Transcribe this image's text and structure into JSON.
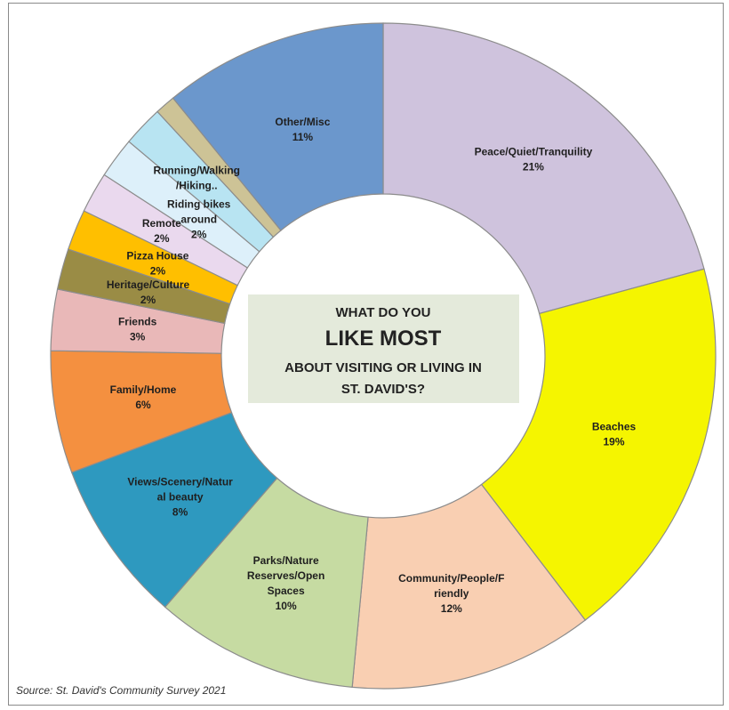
{
  "chart_data": {
    "type": "pie",
    "donut": true,
    "title_lines": [
      "WHAT DO YOU",
      "LIKE MOST",
      "ABOUT VISITING OR LIVING IN",
      "ST. DAVID'S?"
    ],
    "source": "Source:  St. David's Community Survey 2021",
    "slices": [
      {
        "label_lines": [
          "Peace/Quiet/Tranquility"
        ],
        "pct_text": "21%",
        "value": 21,
        "color": "#cfc3dd"
      },
      {
        "label_lines": [
          "Beaches"
        ],
        "pct_text": "19%",
        "value": 19,
        "color": "#f5f500"
      },
      {
        "label_lines": [
          "Community/People/F",
          "riendly"
        ],
        "pct_text": "12%",
        "value": 12,
        "color": "#f9cfb2"
      },
      {
        "label_lines": [
          "Parks/Nature",
          "Reserves/Open",
          "Spaces"
        ],
        "pct_text": "10%",
        "value": 10,
        "color": "#c6dba2"
      },
      {
        "label_lines": [
          "Views/Scenery/Natur",
          "al beauty"
        ],
        "pct_text": "8%",
        "value": 8,
        "color": "#2e99bf"
      },
      {
        "label_lines": [
          "Family/Home"
        ],
        "pct_text": "6%",
        "value": 6,
        "color": "#f49040"
      },
      {
        "label_lines": [
          "Friends"
        ],
        "pct_text": "3%",
        "value": 3,
        "color": "#e9b8b8"
      },
      {
        "label_lines": [
          "Heritage/Culture"
        ],
        "pct_text": "2%",
        "value": 2,
        "color": "#9a8c45"
      },
      {
        "label_lines": [
          "Pizza House"
        ],
        "pct_text": "2%",
        "value": 2,
        "color": "#ffbf00"
      },
      {
        "label_lines": [
          "Remote"
        ],
        "pct_text": "2%",
        "value": 2,
        "color": "#ead9ee"
      },
      {
        "label_lines": [
          "Riding bikes",
          "around"
        ],
        "pct_text": "2%",
        "value": 2,
        "color": "#ddf0fa"
      },
      {
        "label_lines": [
          "Running/Walking",
          "/Hiking.."
        ],
        "pct_text": "",
        "value": 2,
        "color": "#b8e4f2"
      },
      {
        "label_lines": [
          ""
        ],
        "pct_text": "",
        "value": 1,
        "color": "#cdc396"
      },
      {
        "label_lines": [
          "Other/Misc"
        ],
        "pct_text": "11%",
        "value": 11,
        "color": "#6b97cc"
      }
    ]
  }
}
